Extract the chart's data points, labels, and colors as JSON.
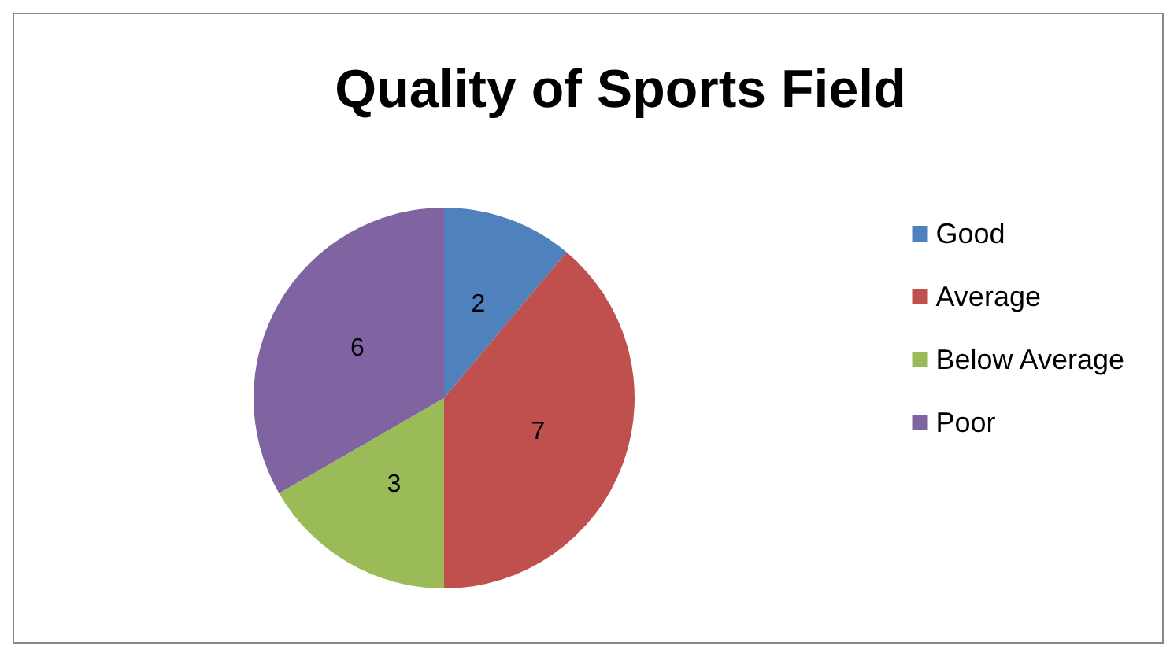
{
  "chart_data": {
    "type": "pie",
    "title": "Quality of Sports Field",
    "categories": [
      "Good",
      "Average",
      "Below Average",
      "Poor"
    ],
    "values": [
      2,
      7,
      3,
      6
    ],
    "colors": [
      "#4f81bd",
      "#c0504d",
      "#9bbb59",
      "#8064a2"
    ],
    "data_labels": true,
    "legend": "right"
  }
}
